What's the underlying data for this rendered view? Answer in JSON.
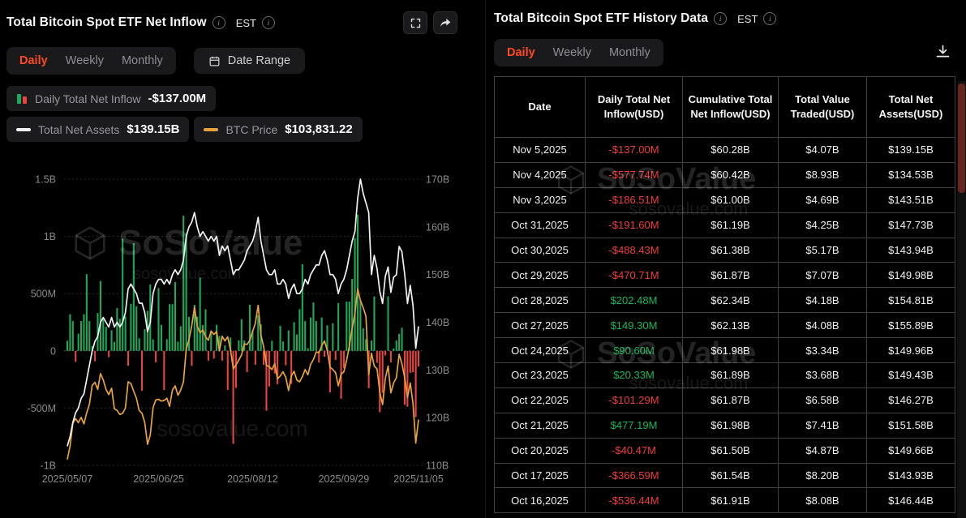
{
  "left_panel": {
    "title": "Total Bitcoin Spot ETF Net Inflow",
    "est_label": "EST",
    "tabs": [
      "Daily",
      "Weekly",
      "Monthly"
    ],
    "active_tab": "Daily",
    "date_range_label": "Date Range",
    "legend": {
      "inflow_label": "Daily Total Net Inflow",
      "inflow_value": "-$137.00M",
      "nav_label": "Total Net Assets",
      "nav_value": "$139.15B",
      "btc_label": "BTC Price",
      "btc_value": "$103,831.22"
    }
  },
  "right_panel": {
    "title": "Total Bitcoin Spot ETF History Data",
    "est_label": "EST",
    "tabs": [
      "Daily",
      "Weekly",
      "Monthly"
    ],
    "active_tab": "Daily",
    "table": {
      "headers": [
        "Date",
        "Daily Total Net Inflow(USD)",
        "Cumulative Total Net Inflow(USD)",
        "Total Value Traded(USD)",
        "Total Net Assets(USD)"
      ],
      "rows": [
        [
          "Nov 5,2025",
          "-$137.00M",
          "$60.28B",
          "$4.07B",
          "$139.15B"
        ],
        [
          "Nov 4,2025",
          "-$577.74M",
          "$60.42B",
          "$8.93B",
          "$134.53B"
        ],
        [
          "Nov 3,2025",
          "-$186.51M",
          "$61.00B",
          "$4.69B",
          "$143.51B"
        ],
        [
          "Oct 31,2025",
          "-$191.60M",
          "$61.19B",
          "$4.25B",
          "$147.73B"
        ],
        [
          "Oct 30,2025",
          "-$488.43M",
          "$61.38B",
          "$5.17B",
          "$143.94B"
        ],
        [
          "Oct 29,2025",
          "-$470.71M",
          "$61.87B",
          "$7.07B",
          "$149.98B"
        ],
        [
          "Oct 28,2025",
          "$202.48M",
          "$62.34B",
          "$4.18B",
          "$154.81B"
        ],
        [
          "Oct 27,2025",
          "$149.30M",
          "$62.13B",
          "$4.08B",
          "$155.89B"
        ],
        [
          "Oct 24,2025",
          "$90.60M",
          "$61.98B",
          "$3.34B",
          "$149.96B"
        ],
        [
          "Oct 23,2025",
          "$20.33M",
          "$61.89B",
          "$3.68B",
          "$149.43B"
        ],
        [
          "Oct 22,2025",
          "-$101.29M",
          "$61.87B",
          "$6.58B",
          "$146.27B"
        ],
        [
          "Oct 21,2025",
          "$477.19M",
          "$61.98B",
          "$7.41B",
          "$151.58B"
        ],
        [
          "Oct 20,2025",
          "-$40.47M",
          "$61.50B",
          "$4.87B",
          "$149.66B"
        ],
        [
          "Oct 17,2025",
          "-$366.59M",
          "$61.54B",
          "$8.20B",
          "$143.93B"
        ],
        [
          "Oct 16,2025",
          "-$536.44M",
          "$61.91B",
          "$8.08B",
          "$146.44B"
        ]
      ]
    }
  },
  "watermark": {
    "brand": "SoSoValue",
    "domain": "sosovalue.com"
  },
  "chart_data": {
    "type": "combo",
    "title": "Total Bitcoin Spot ETF Net Inflow",
    "interval": "Daily",
    "n_points": 128,
    "date_start": "2025/05/07",
    "date_end": "2025/11/05",
    "x_tick_days": [
      0,
      33,
      67,
      100,
      127
    ],
    "x_tick_labels": [
      "2025/05/07",
      "2025/06/25",
      "2025/08/12",
      "2025/09/29",
      "2025/11/05"
    ],
    "left_axis": {
      "label": "Daily Total Net Inflow (USD)",
      "unit": "M",
      "range": [
        -1000,
        1500
      ],
      "tick_values": [
        1500,
        1000,
        500,
        0,
        -500,
        -1000
      ],
      "tick_labels": [
        "1.5B",
        "1B",
        "500M",
        "0",
        "-500M",
        "-1B"
      ]
    },
    "right_axis": {
      "label": "Total Net Assets (USD)",
      "unit": "B",
      "range": [
        110,
        170
      ],
      "tick_values": [
        170,
        160,
        150,
        140,
        130,
        120,
        110
      ],
      "tick_labels": [
        "170B",
        "160B",
        "150B",
        "140B",
        "130B",
        "120B",
        "110B"
      ]
    },
    "btc_axis_hidden_range_k": [
      96,
      145
    ],
    "grid": "dotted",
    "legend_position": "top",
    "series": [
      {
        "name": "Daily Total Net Inflow",
        "type": "bar",
        "unit": "$M",
        "latest": "-$137.00M",
        "values": [
          88,
          320,
          260,
          -96,
          150,
          260,
          320,
          670,
          260,
          41,
          -91,
          330,
          610,
          290,
          210,
          -56,
          180,
          78,
          375,
          280,
          980,
          300,
          -130,
          410,
          940,
          390,
          110,
          -350,
          190,
          350,
          580,
          100,
          -99,
          548,
          227,
          -342,
          102,
          408,
          408,
          602,
          80,
          215,
          1180,
          1030,
          297,
          -131,
          403,
          298,
          640,
          226,
          363,
          -86,
          157,
          -68,
          227,
          130,
          -85,
          48,
          -342,
          116,
          -812,
          -323,
          91,
          277,
          91,
          -186,
          404,
          178,
          -121,
          310,
          231,
          -122,
          -523,
          -312,
          88,
          -198,
          -291,
          219,
          81,
          -126,
          179,
          -289,
          250,
          143,
          364,
          757,
          260,
          23,
          292,
          422,
          260,
          -103,
          292,
          -51,
          223,
          -363,
          241,
          -79,
          418,
          -418,
          -150,
          430,
          430,
          628,
          985,
          1190,
          440,
          197,
          103,
          -326,
          90,
          475,
          -104,
          -536,
          -367,
          -40,
          477,
          -101,
          20,
          91,
          149,
          202,
          -471,
          -488,
          -192,
          -187,
          -578,
          -137
        ]
      },
      {
        "name": "Total Net Assets",
        "type": "line",
        "unit": "$B",
        "latest": "$139.15B",
        "values": [
          114,
          116,
          119,
          121,
          122,
          124,
          125,
          128,
          131,
          134,
          136,
          137,
          140,
          141,
          140,
          139,
          141,
          139,
          140,
          139,
          140,
          142,
          147,
          148,
          147,
          146,
          144,
          144,
          142,
          138,
          140,
          146,
          148,
          149,
          149,
          148,
          149,
          148,
          150,
          151,
          150,
          151,
          153,
          158,
          160,
          161,
          163,
          160,
          158,
          159,
          158,
          157,
          158,
          157,
          158,
          154,
          156,
          155,
          156,
          153,
          150,
          151,
          151,
          152,
          153,
          155,
          156,
          157,
          159,
          162,
          157,
          154,
          151,
          150,
          150,
          151,
          148,
          148,
          149,
          148,
          145,
          147,
          148,
          146,
          146,
          147,
          149,
          148,
          150,
          151,
          152,
          152,
          154,
          155,
          153,
          150,
          150,
          149,
          146,
          148,
          149,
          151,
          154,
          157,
          159,
          166,
          170,
          167,
          165,
          163,
          150,
          154,
          151.2,
          146.44,
          143.93,
          149.66,
          151.58,
          146.27,
          149.43,
          149.96,
          155.89,
          154.81,
          149.98,
          143.94,
          147.73,
          143.51,
          134.53,
          139.15
        ]
      },
      {
        "name": "BTC Price",
        "type": "line",
        "unit": "$K",
        "latest": "$103,831.22",
        "values": [
          97,
          99.3,
          103.2,
          104,
          103.3,
          104.2,
          103.1,
          105,
          106.5,
          109.7,
          110.2,
          109,
          111.7,
          110.6,
          109,
          108.1,
          109.2,
          105.7,
          105.4,
          104.7,
          104.9,
          105.8,
          110.3,
          110,
          108.7,
          107.5,
          105.4,
          104.9,
          103.3,
          99.6,
          101.2,
          105.9,
          107.2,
          107.3,
          107,
          107.1,
          107.5,
          106.1,
          108.9,
          109.6,
          108,
          108.9,
          110.3,
          115.9,
          117.5,
          119.9,
          123.1,
          119.8,
          118.7,
          119.2,
          118,
          117.4,
          119,
          118.4,
          118.9,
          115.6,
          118.1,
          117.3,
          118,
          115.8,
          112.5,
          113.2,
          114,
          114.9,
          116.8,
          116.7,
          117.4,
          118.9,
          120.3,
          123.4,
          118.3,
          116.3,
          113.1,
          112.9,
          112.4,
          113.4,
          110.8,
          111.3,
          112,
          111.1,
          108.8,
          111.3,
          112.1,
          110.6,
          110.3,
          111.2,
          112.4,
          111.5,
          113.3,
          114.1,
          115.4,
          115.3,
          116.5,
          117.3,
          115.7,
          112.8,
          112.4,
          111.9,
          109.6,
          111.6,
          112,
          114,
          116.5,
          119.5,
          122,
          126.2,
          124.2,
          123,
          121.5,
          111.5,
          115.2,
          113,
          112.5,
          108.5,
          106.4,
          110.9,
          113,
          108.4,
          110.1,
          111,
          115,
          113.4,
          111,
          107.6,
          110.1,
          106.6,
          99.8,
          103.83
        ]
      }
    ],
    "colors": {
      "bar_up": "#1fa85a",
      "bar_down": "#e8453f",
      "nav_line": "#f2f2f2",
      "btc_line": "#e8a33a",
      "grid": "#2a2a2a",
      "zero_line": "#555555",
      "axis_text": "#8b8b8b",
      "accent_tab": "#fd4a1e",
      "table_positive": "#17b85c",
      "table_negative": "#f23c3c"
    }
  }
}
